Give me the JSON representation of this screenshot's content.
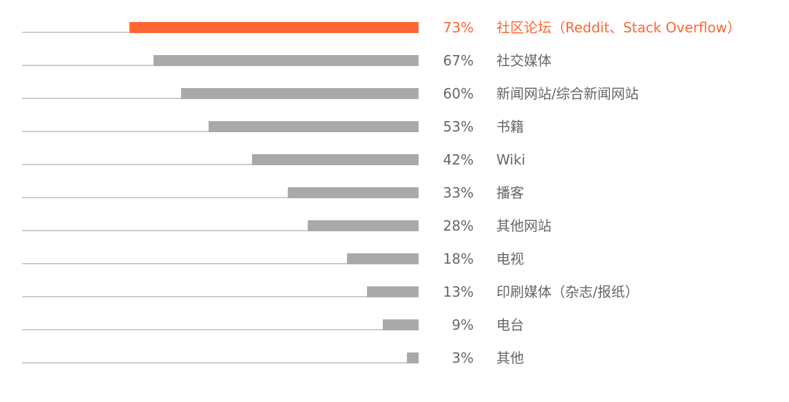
{
  "colors": {
    "highlight": "#ff6633",
    "bar": "#a9a9aa",
    "track": "#cccccc",
    "text": "#666666"
  },
  "chart_data": {
    "type": "bar",
    "orientation": "horizontal",
    "title": "",
    "xlabel": "",
    "ylabel": "",
    "grid": false,
    "legend": null,
    "highlighted_index": 0,
    "categories": [
      "社区论坛（Reddit、Stack Overflow）",
      "社交媒体",
      "新闻网站/综合新闻网站",
      "书籍",
      "Wiki",
      "播客",
      "其他网站",
      "电视",
      "印刷媒体（杂志/报纸）",
      "电台",
      "其他"
    ],
    "values": [
      73,
      67,
      60,
      53,
      42,
      33,
      28,
      18,
      13,
      9,
      3
    ],
    "labels": [
      "73%",
      "67%",
      "60%",
      "53%",
      "42%",
      "33%",
      "28%",
      "18%",
      "13%",
      "9%",
      "3%"
    ],
    "xlim": [
      0,
      100
    ]
  }
}
